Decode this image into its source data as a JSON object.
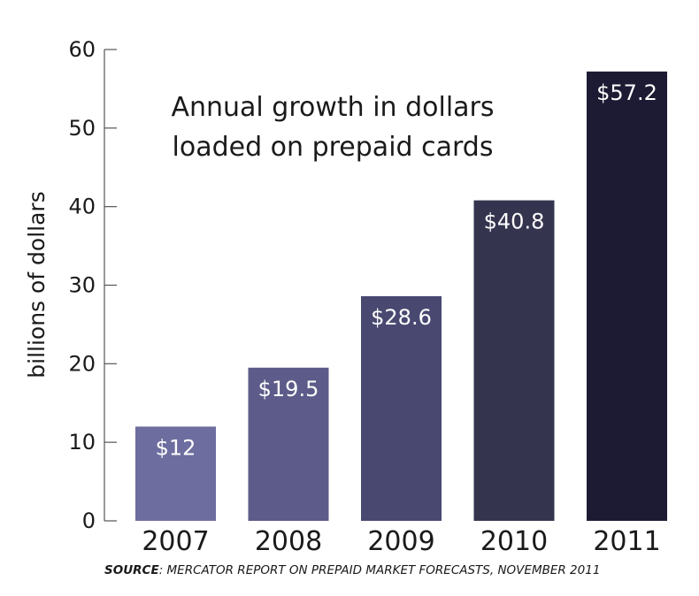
{
  "chart_data": {
    "type": "bar",
    "title_lines": [
      "Annual growth in dollars",
      "loaded on prepaid cards"
    ],
    "ylabel": "billions of dollars",
    "xlabel": "",
    "ylim": [
      0,
      60
    ],
    "yticks": [
      0,
      10,
      20,
      30,
      40,
      50,
      60
    ],
    "categories": [
      "2007",
      "2008",
      "2009",
      "2010",
      "2011"
    ],
    "values": [
      12,
      19.5,
      28.6,
      40.8,
      57.2
    ],
    "data_labels": [
      "$12",
      "$19.5",
      "$28.6",
      "$40.8",
      "$57.2"
    ],
    "bar_colors": [
      "#6e6d9f",
      "#5c5b89",
      "#494871",
      "#35344f",
      "#1c1b33"
    ],
    "grid": false
  },
  "source": {
    "prefix": "SOURCE",
    "text": ": MERCATOR REPORT ON PREPAID MARKET FORECASTS, NOVEMBER 2011"
  }
}
